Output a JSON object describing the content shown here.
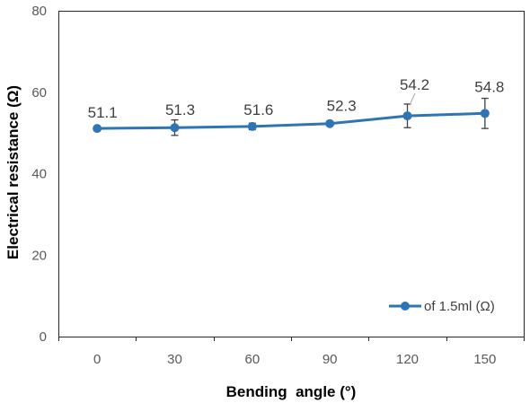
{
  "chart_data": {
    "type": "line",
    "categories": [
      "0",
      "30",
      "60",
      "90",
      "120",
      "150"
    ],
    "series": [
      {
        "name": "of 1.5ml (Ω)",
        "values": [
          51.1,
          51.3,
          51.6,
          52.3,
          54.2,
          54.8
        ],
        "errors": [
          0.3,
          1.9,
          0.8,
          0.5,
          2.9,
          3.7
        ],
        "color": "#2E75B6"
      }
    ],
    "xlabel": "Bending  angle (°)",
    "ylabel": "Electrical resistance (Ω)",
    "ylim": [
      0,
      80
    ],
    "yticks": [
      0,
      20,
      40,
      60,
      80
    ],
    "show_data_labels": true,
    "error_bars": true,
    "error_bar_color": "#404040",
    "grid": false,
    "legend": "bottom-right"
  }
}
